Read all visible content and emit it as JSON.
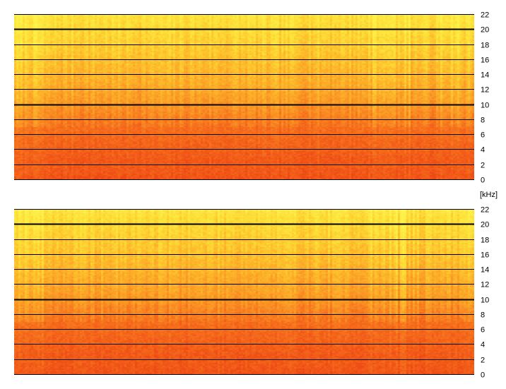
{
  "chart_data": {
    "type": "heatmap",
    "unit_label": "[kHz]",
    "y_range": [
      0,
      22
    ],
    "y_ticks": [
      0,
      2,
      4,
      6,
      8,
      10,
      12,
      14,
      16,
      18,
      20,
      22
    ],
    "y_tick_labels": [
      "0",
      "2",
      "4",
      "6",
      "8",
      "10",
      "12",
      "14",
      "16",
      "18",
      "20",
      "22"
    ],
    "emphasized_gridlines": [
      10,
      20
    ],
    "grid": true,
    "colormap": [
      "#d92a10",
      "#ee4a15",
      "#f66d1c",
      "#fa9424",
      "#fdb82a",
      "#fddd36",
      "#fdf24a"
    ],
    "panels": [
      {
        "seed": 7
      },
      {
        "seed": 19
      }
    ]
  }
}
